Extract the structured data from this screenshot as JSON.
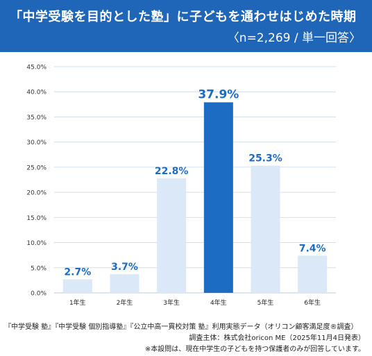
{
  "header": {
    "title": "「中学受験を目的とした塾」に子どもを通わせはじめた時期",
    "subtitle": "〈n=2,269 / 単一回答〉"
  },
  "colors": {
    "header_bg": "#1f66b8",
    "bar_light": "#dae8f7",
    "bar_highlight": "#1d6cc4",
    "label_color": "#1d6cc4",
    "grid": "#cfe0f1"
  },
  "chart_data": {
    "type": "bar",
    "categories": [
      "1年生",
      "2年生",
      "3年生",
      "4年生",
      "5年生",
      "6年生"
    ],
    "values": [
      2.7,
      3.7,
      22.8,
      37.9,
      25.3,
      7.4
    ],
    "data_labels": [
      "2.7%",
      "3.7%",
      "22.8%",
      "37.9%",
      "25.3%",
      "7.4%"
    ],
    "highlight_index": 3,
    "ylim": [
      0,
      45
    ],
    "yticks": [
      0,
      5,
      10,
      15,
      20,
      25,
      30,
      35,
      40,
      45
    ],
    "ytick_labels": [
      "0.0%",
      "5.0%",
      "10.0%",
      "15.0%",
      "20.0%",
      "25.0%",
      "30.0%",
      "35.0%",
      "40.0%",
      "45.0%"
    ],
    "grid": true
  },
  "footer": {
    "source_line": "『中学受験 塾』『中学受験 個別指導塾』『公立中高一貫校対策 塾』利用実態データ（オリコン顧客満足度®調査）",
    "survey_line": "調査主体：株式会社oricon ME（2025年11月4日発表）",
    "note_line": "※本設問は、現在中学生の子どもを持つ保護者のみが回答しています。"
  }
}
